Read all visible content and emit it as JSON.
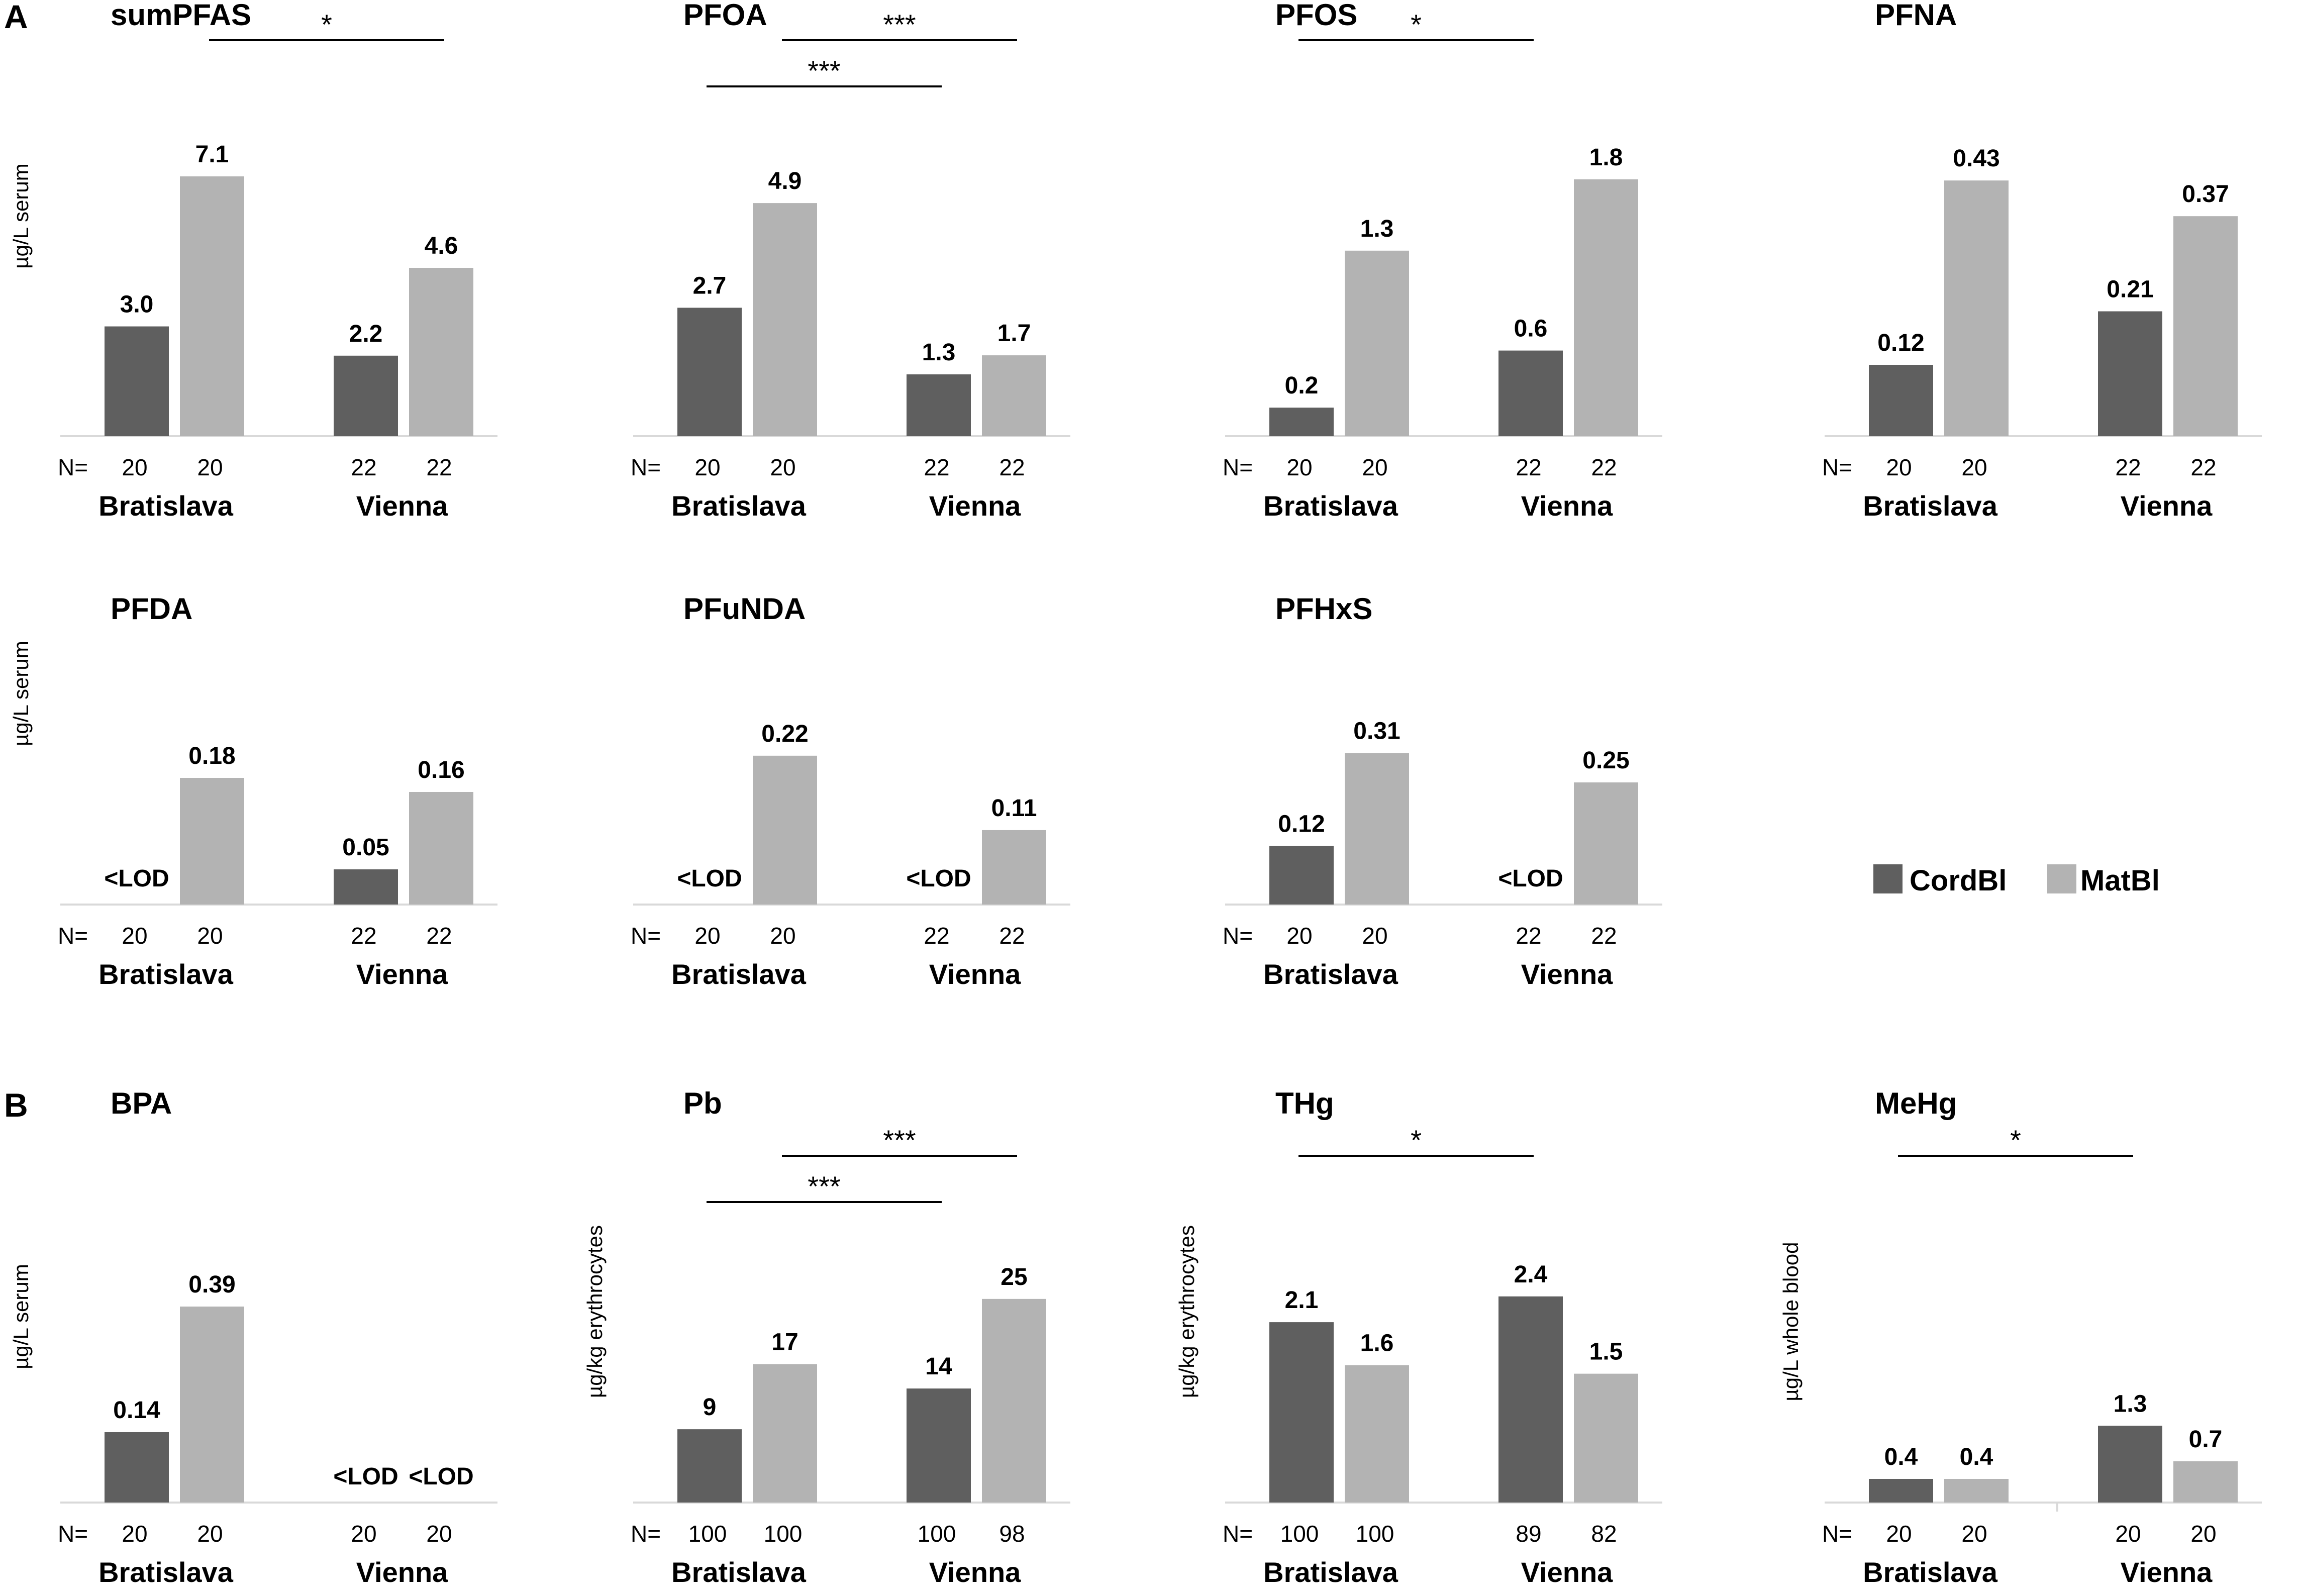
{
  "panel_labels": [
    "A",
    "B"
  ],
  "legend": {
    "cordbl_label": "CordBl",
    "matbl_label": "MatBl",
    "cordbl_color": "#5f5f5f",
    "matbl_color": "#b3b3b3"
  },
  "colors": {
    "axis": "#d9d9d9",
    "text": "#000000"
  },
  "chart_data": [
    {
      "type": "bar",
      "title": "sumPFAS",
      "ylabel": "µg/L serum",
      "ylim": [
        0,
        7.8
      ],
      "groups": [
        "Bratislava",
        "Vienna"
      ],
      "n": [
        [
          "20",
          "20"
        ],
        [
          "22",
          "22"
        ]
      ],
      "series": [
        {
          "name": "CordBl",
          "values": [
            3.0,
            2.2
          ],
          "labels": [
            "3.0",
            "2.2"
          ]
        },
        {
          "name": "MatBl",
          "values": [
            7.1,
            4.6
          ],
          "labels": [
            "7.1",
            "4.6"
          ]
        }
      ],
      "significance": [
        {
          "from": "Bratislava MatBl",
          "to": "Vienna MatBl",
          "label": "*"
        }
      ]
    },
    {
      "type": "bar",
      "title": "PFOA",
      "ylabel": "",
      "ylim": [
        0,
        6.0
      ],
      "groups": [
        "Bratislava",
        "Vienna"
      ],
      "n": [
        [
          "20",
          "20"
        ],
        [
          "22",
          "22"
        ]
      ],
      "series": [
        {
          "name": "CordBl",
          "values": [
            2.7,
            1.3
          ],
          "labels": [
            "2.7",
            "1.3"
          ]
        },
        {
          "name": "MatBl",
          "values": [
            4.9,
            1.7
          ],
          "labels": [
            "4.9",
            "1.7"
          ]
        }
      ],
      "significance": [
        {
          "from": "Bratislava MatBl",
          "to": "Vienna MatBl",
          "label": "***"
        },
        {
          "from": "Bratislava CordBl",
          "to": "Vienna CordBl",
          "label": "***"
        }
      ]
    },
    {
      "type": "bar",
      "title": "PFOS",
      "ylabel": "",
      "ylim": [
        0,
        2.0
      ],
      "groups": [
        "Bratislava",
        "Vienna"
      ],
      "n": [
        [
          "20",
          "20"
        ],
        [
          "22",
          "22"
        ]
      ],
      "series": [
        {
          "name": "CordBl",
          "values": [
            0.2,
            0.6
          ],
          "labels": [
            "0.2",
            "0.6"
          ]
        },
        {
          "name": "MatBl",
          "values": [
            1.3,
            1.8
          ],
          "labels": [
            "1.3",
            "1.8"
          ]
        }
      ],
      "significance": [
        {
          "from": "Bratislava CordBl",
          "to": "Vienna CordBl",
          "label": "*"
        }
      ]
    },
    {
      "type": "bar",
      "title": "PFNA",
      "ylabel": "",
      "ylim": [
        0,
        0.48
      ],
      "groups": [
        "Bratislava",
        "Vienna"
      ],
      "n": [
        [
          "20",
          "20"
        ],
        [
          "22",
          "22"
        ]
      ],
      "series": [
        {
          "name": "CordBl",
          "values": [
            0.12,
            0.21
          ],
          "labels": [
            "0.12",
            "0.21"
          ]
        },
        {
          "name": "MatBl",
          "values": [
            0.43,
            0.37
          ],
          "labels": [
            "0.43",
            "0.37"
          ]
        }
      ],
      "significance": []
    },
    {
      "type": "bar",
      "title": "PFDA",
      "ylabel": "µg/L serum",
      "ylim": [
        0,
        0.25
      ],
      "groups": [
        "Bratislava",
        "Vienna"
      ],
      "n": [
        [
          "20",
          "20"
        ],
        [
          "22",
          "22"
        ]
      ],
      "series": [
        {
          "name": "CordBl",
          "values": [
            null,
            0.05
          ],
          "labels": [
            "<LOD",
            "0.05"
          ]
        },
        {
          "name": "MatBl",
          "values": [
            0.18,
            0.16
          ],
          "labels": [
            "0.18",
            "0.16"
          ]
        }
      ],
      "significance": []
    },
    {
      "type": "bar",
      "title": "PFuNDA",
      "ylabel": "",
      "ylim": [
        0,
        0.26
      ],
      "groups": [
        "Bratislava",
        "Vienna"
      ],
      "n": [
        [
          "20",
          "20"
        ],
        [
          "22",
          "22"
        ]
      ],
      "series": [
        {
          "name": "CordBl",
          "values": [
            null,
            null
          ],
          "labels": [
            "<LOD",
            "<LOD"
          ]
        },
        {
          "name": "MatBl",
          "values": [
            0.22,
            0.11
          ],
          "labels": [
            "0.22",
            "0.11"
          ]
        }
      ],
      "significance": []
    },
    {
      "type": "bar",
      "title": "PFHxS",
      "ylabel": "",
      "ylim": [
        0,
        0.36
      ],
      "groups": [
        "Bratislava",
        "Vienna"
      ],
      "n": [
        [
          "20",
          "20"
        ],
        [
          "22",
          "22"
        ]
      ],
      "series": [
        {
          "name": "CordBl",
          "values": [
            0.12,
            null
          ],
          "labels": [
            "0.12",
            "<LOD"
          ]
        },
        {
          "name": "MatBl",
          "values": [
            0.31,
            0.25
          ],
          "labels": [
            "0.31",
            "0.25"
          ]
        }
      ],
      "significance": []
    },
    {
      "type": "bar",
      "title": "BPA",
      "ylabel": "µg/L serum",
      "ylim": [
        0,
        0.47
      ],
      "groups": [
        "Bratislava",
        "Vienna"
      ],
      "n": [
        [
          "20",
          "20"
        ],
        [
          "20",
          "20"
        ]
      ],
      "series": [
        {
          "name": "CordBl",
          "values": [
            0.14,
            null
          ],
          "labels": [
            "0.14",
            "<LOD"
          ]
        },
        {
          "name": "MatBl",
          "values": [
            0.39,
            null
          ],
          "labels": [
            "0.39",
            "<LOD"
          ]
        }
      ],
      "significance": []
    },
    {
      "type": "bar",
      "title": "Pb",
      "ylabel": "µg/kg erythrocytes",
      "ylim": [
        0,
        29
      ],
      "groups": [
        "Bratislava",
        "Vienna"
      ],
      "n": [
        [
          "100",
          "100"
        ],
        [
          "100",
          "98"
        ]
      ],
      "series": [
        {
          "name": "CordBl",
          "values": [
            9,
            14
          ],
          "labels": [
            "9",
            "14"
          ]
        },
        {
          "name": "MatBl",
          "values": [
            17,
            25
          ],
          "labels": [
            "17",
            "25"
          ]
        }
      ],
      "significance": [
        {
          "from": "Bratislava MatBl",
          "to": "Vienna MatBl",
          "label": "***"
        },
        {
          "from": "Bratislava CordBl",
          "to": "Vienna CordBl",
          "label": "***"
        }
      ]
    },
    {
      "type": "bar",
      "title": "THg",
      "ylabel": "µg/kg erythrocytes",
      "ylim": [
        0,
        2.75
      ],
      "groups": [
        "Bratislava",
        "Vienna"
      ],
      "n": [
        [
          "100",
          "100"
        ],
        [
          "89",
          "82"
        ]
      ],
      "series": [
        {
          "name": "CordBl",
          "values": [
            2.1,
            2.4
          ],
          "labels": [
            "2.1",
            "2.4"
          ]
        },
        {
          "name": "MatBl",
          "values": [
            1.6,
            1.5
          ],
          "labels": [
            "1.6",
            "1.5"
          ]
        }
      ],
      "significance": [
        {
          "from": "Bratislava CordBl",
          "to": "Vienna CordBl",
          "label": "*"
        }
      ]
    },
    {
      "type": "bar",
      "title": "MeHg",
      "ylabel": "µg/L whole blood",
      "ylim": [
        0,
        4.0
      ],
      "groups": [
        "Bratislava",
        "Vienna"
      ],
      "n": [
        [
          "20",
          "20"
        ],
        [
          "20",
          "20"
        ]
      ],
      "series": [
        {
          "name": "CordBl",
          "values": [
            0.4,
            1.3
          ],
          "labels": [
            "0.4",
            "1.3"
          ]
        },
        {
          "name": "MatBl",
          "values": [
            0.4,
            0.7
          ],
          "labels": [
            "0.4",
            "0.7"
          ]
        }
      ],
      "significance": [
        {
          "from": "Bratislava CordBl",
          "to": "Vienna CordBl",
          "label": "*"
        }
      ]
    }
  ]
}
